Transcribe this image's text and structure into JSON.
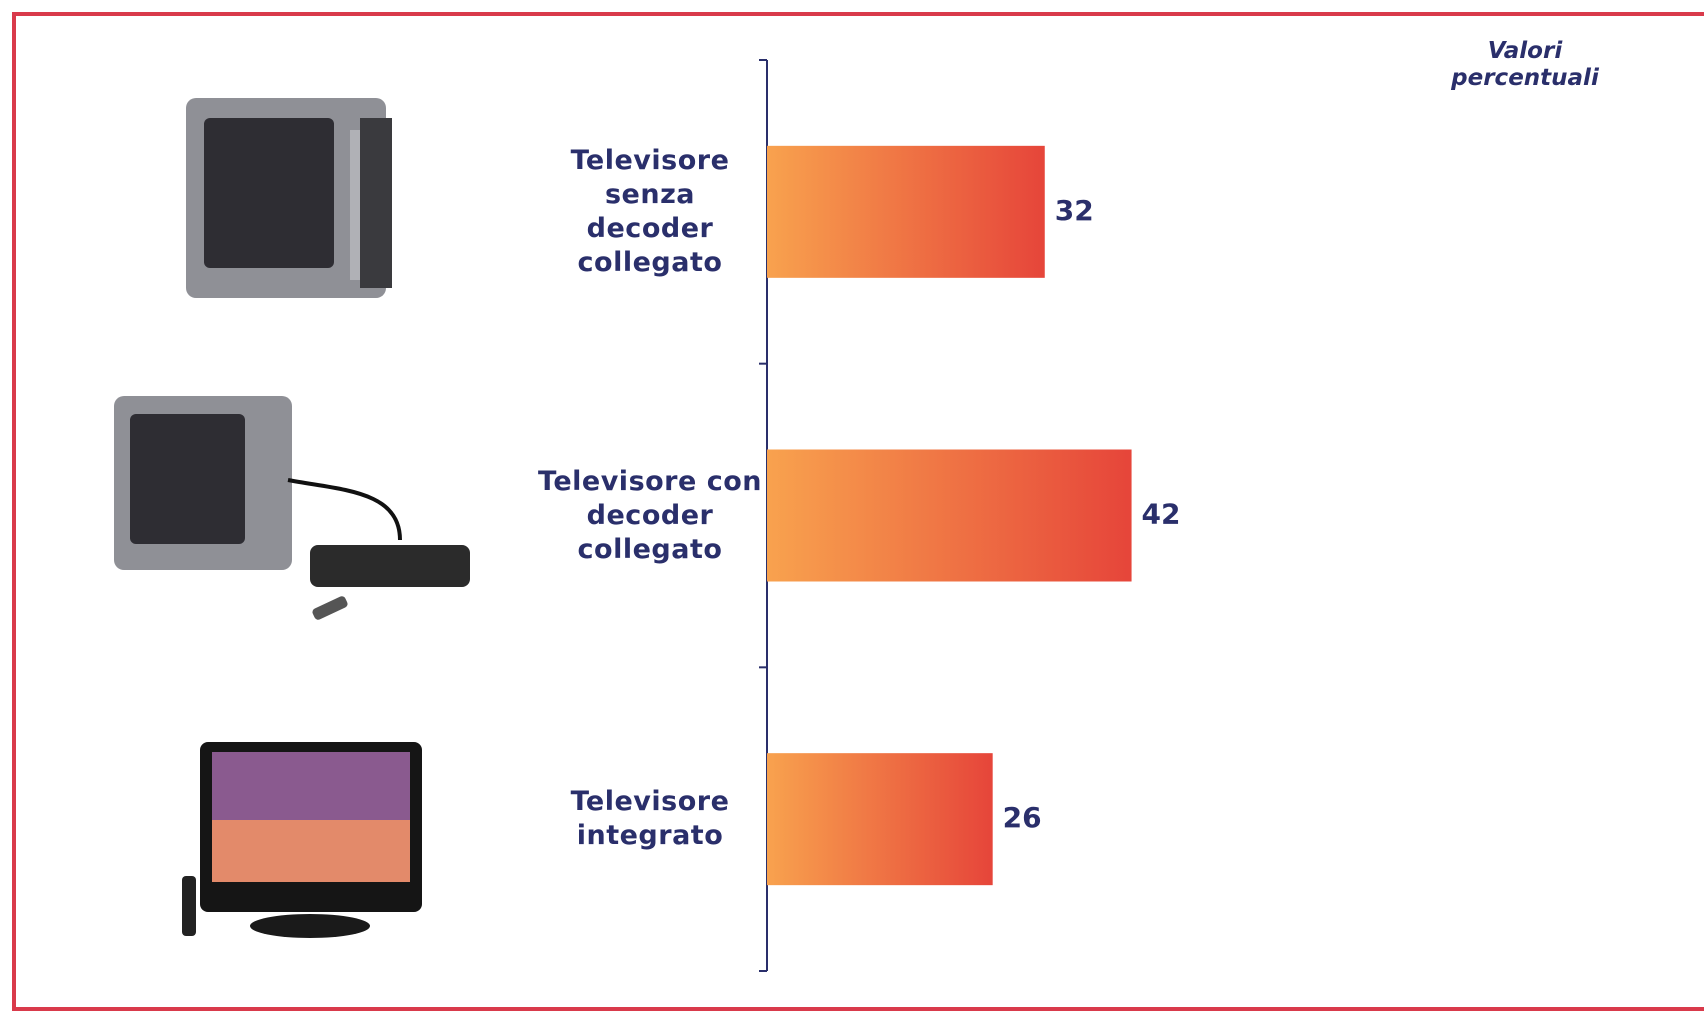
{
  "chart_data": {
    "type": "bar",
    "orientation": "horizontal",
    "note": "Valori percentuali",
    "categories": [
      "Televisore senza decoder collegato",
      "Televisore con decoder collegato",
      "Televisore integrato"
    ],
    "values": [
      32,
      42,
      26
    ]
  }
}
